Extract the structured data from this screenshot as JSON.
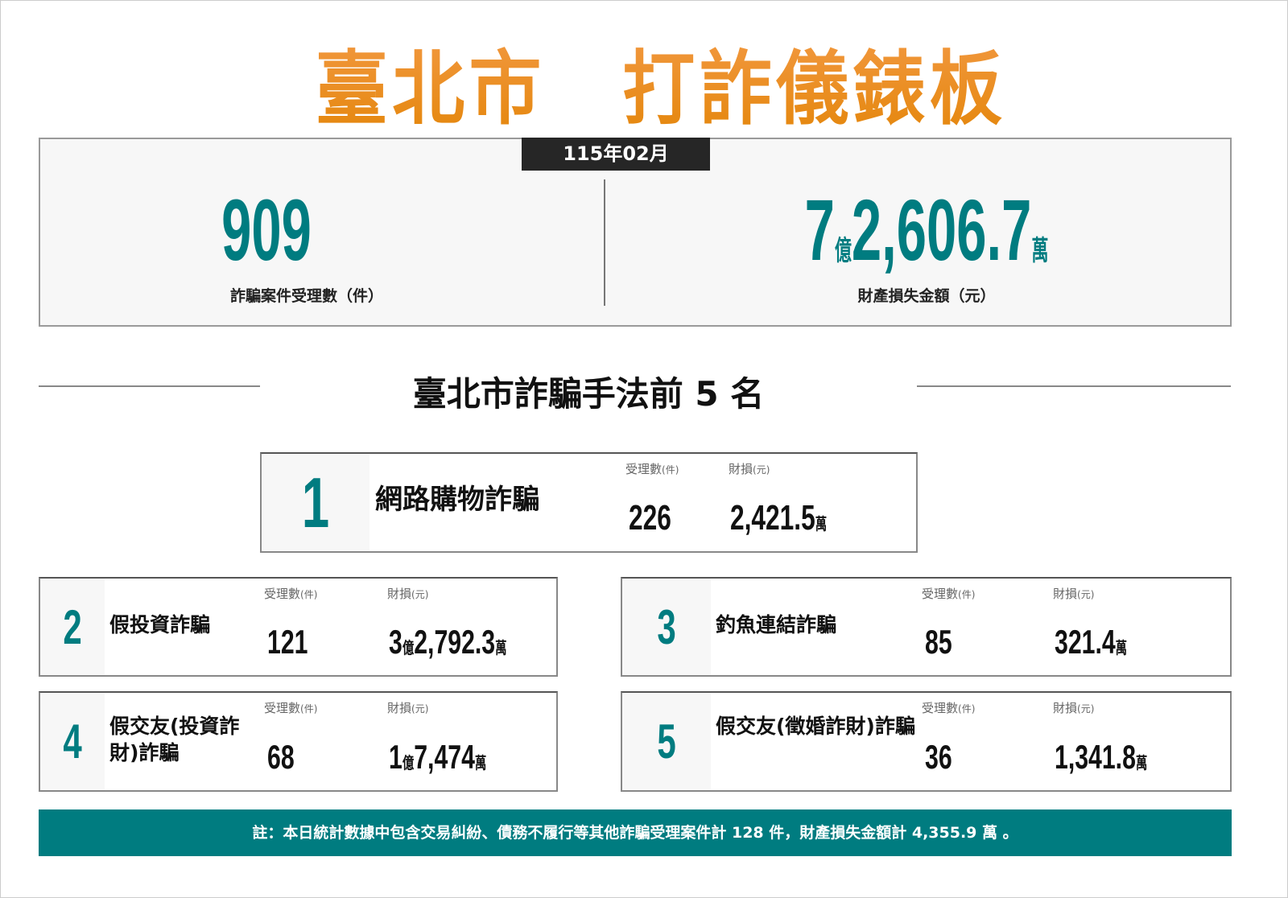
{
  "title": "臺北市　打詐儀錶板",
  "period": "115年02月",
  "summary": {
    "cases": {
      "value": "909",
      "label": "詐騙案件受理數（件）"
    },
    "loss": {
      "yi": "7",
      "yi_unit": "億",
      "wan": "2,606.7",
      "wan_unit": "萬",
      "label": "財產損失金額（元）"
    }
  },
  "section_title": "臺北市詐騙手法前 5 名",
  "columns": {
    "cases": "受理數",
    "cases_unit": "(件)",
    "loss": "財損",
    "loss_unit": "(元)"
  },
  "ranking": [
    {
      "rank": "1",
      "name": "網路購物詐騙",
      "cases": "226",
      "loss_yi": "",
      "loss_yi_unit": "",
      "loss_wan": "2,421.5",
      "loss_wan_unit": "萬"
    },
    {
      "rank": "2",
      "name": "假投資詐騙",
      "cases": "121",
      "loss_yi": "3",
      "loss_yi_unit": "億",
      "loss_wan": "2,792.3",
      "loss_wan_unit": "萬"
    },
    {
      "rank": "3",
      "name": "釣魚連結詐騙",
      "cases": "85",
      "loss_yi": "",
      "loss_yi_unit": "",
      "loss_wan": "321.4",
      "loss_wan_unit": "萬"
    },
    {
      "rank": "4",
      "name": "假交友(投資詐財)詐騙",
      "cases": "68",
      "loss_yi": "1",
      "loss_yi_unit": "億",
      "loss_wan": "7,474",
      "loss_wan_unit": "萬"
    },
    {
      "rank": "5",
      "name": "假交友(徵婚詐財)詐騙",
      "cases": "36",
      "loss_yi": "",
      "loss_yi_unit": "",
      "loss_wan": "1,341.8",
      "loss_wan_unit": "萬"
    }
  ],
  "footer_note": "註：本日統計數據中包含交易糾紛、債務不履行等其他詐騙受理案件計 128 件，財產損失金額計 4,355.9 萬 。",
  "colors": {
    "accent": "#007c80",
    "title": "#ea8a1e",
    "date_bg": "#262626"
  }
}
